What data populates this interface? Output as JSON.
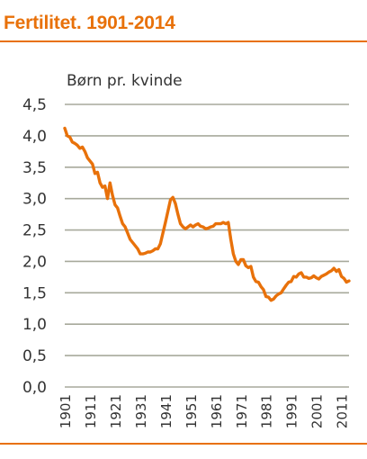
{
  "title": "Fertilitet. 1901-2014",
  "colors": {
    "accent": "#e8710a",
    "grid": "#a7a99b",
    "text": "#333333"
  },
  "chart_data": {
    "type": "line",
    "title": "Fertilitet. 1901-2014",
    "ylabel": "Børn pr. kvinde",
    "xlabel": "",
    "xlim": [
      1901,
      2014
    ],
    "ylim": [
      0,
      4.5
    ],
    "grid": true,
    "y_ticks": [
      "0,0",
      "0,5",
      "1,0",
      "1,5",
      "2,0",
      "2,5",
      "3,0",
      "3,5",
      "4,0",
      "4,5"
    ],
    "y_tick_values": [
      0,
      0.5,
      1.0,
      1.5,
      2.0,
      2.5,
      3.0,
      3.5,
      4.0,
      4.5
    ],
    "x_ticks": [
      "1901",
      "1911",
      "1921",
      "1931",
      "1941",
      "1951",
      "1961",
      "1971",
      "1981",
      "1991",
      "2001",
      "2011"
    ],
    "x_tick_values": [
      1901,
      1911,
      1921,
      1931,
      1941,
      1951,
      1961,
      1971,
      1981,
      1991,
      2001,
      2011
    ],
    "series": [
      {
        "color": "#e8710a",
        "x": [
          1901,
          1902,
          1903,
          1904,
          1905,
          1906,
          1907,
          1908,
          1909,
          1910,
          1911,
          1912,
          1913,
          1914,
          1915,
          1916,
          1917,
          1918,
          1919,
          1920,
          1921,
          1922,
          1923,
          1924,
          1925,
          1926,
          1927,
          1928,
          1929,
          1930,
          1931,
          1932,
          1933,
          1934,
          1935,
          1936,
          1937,
          1938,
          1939,
          1940,
          1941,
          1942,
          1943,
          1944,
          1945,
          1946,
          1947,
          1948,
          1949,
          1950,
          1951,
          1952,
          1953,
          1954,
          1955,
          1956,
          1957,
          1958,
          1959,
          1960,
          1961,
          1962,
          1963,
          1964,
          1965,
          1966,
          1967,
          1968,
          1969,
          1970,
          1971,
          1972,
          1973,
          1974,
          1975,
          1976,
          1977,
          1978,
          1979,
          1980,
          1981,
          1982,
          1983,
          1984,
          1985,
          1986,
          1987,
          1988,
          1989,
          1990,
          1991,
          1992,
          1993,
          1994,
          1995,
          1996,
          1997,
          1998,
          1999,
          2000,
          2001,
          2002,
          2003,
          2004,
          2005,
          2006,
          2007,
          2008,
          2009,
          2010,
          2011,
          2012,
          2013,
          2014
        ],
        "values": [
          4.12,
          4.0,
          3.98,
          3.9,
          3.88,
          3.85,
          3.8,
          3.82,
          3.75,
          3.65,
          3.6,
          3.55,
          3.4,
          3.42,
          3.25,
          3.18,
          3.2,
          3.0,
          3.25,
          3.05,
          2.9,
          2.85,
          2.72,
          2.6,
          2.55,
          2.45,
          2.35,
          2.3,
          2.25,
          2.2,
          2.12,
          2.12,
          2.13,
          2.15,
          2.15,
          2.17,
          2.2,
          2.2,
          2.28,
          2.45,
          2.62,
          2.8,
          2.98,
          3.02,
          2.92,
          2.75,
          2.6,
          2.55,
          2.52,
          2.55,
          2.58,
          2.55,
          2.58,
          2.6,
          2.56,
          2.55,
          2.52,
          2.53,
          2.55,
          2.56,
          2.6,
          2.6,
          2.6,
          2.62,
          2.6,
          2.62,
          2.35,
          2.12,
          2.0,
          1.95,
          2.03,
          2.03,
          1.93,
          1.9,
          1.92,
          1.75,
          1.68,
          1.67,
          1.6,
          1.55,
          1.44,
          1.43,
          1.38,
          1.4,
          1.45,
          1.48,
          1.5,
          1.56,
          1.62,
          1.67,
          1.68,
          1.76,
          1.75,
          1.8,
          1.82,
          1.75,
          1.75,
          1.73,
          1.74,
          1.77,
          1.74,
          1.72,
          1.76,
          1.78,
          1.8,
          1.83,
          1.85,
          1.89,
          1.84,
          1.87,
          1.76,
          1.73,
          1.67,
          1.69
        ]
      }
    ]
  }
}
